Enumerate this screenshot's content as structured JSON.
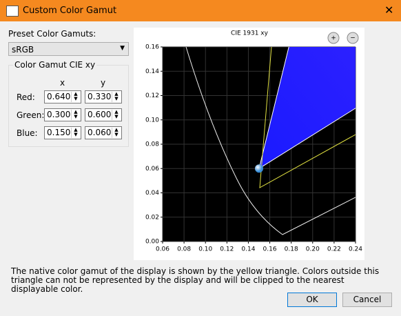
{
  "window": {
    "title": "Custom Color Gamut"
  },
  "preset": {
    "label": "Preset Color Gamuts:",
    "selected": "sRGB"
  },
  "gamut": {
    "title": "Color Gamut CIE xy",
    "columns": [
      "x",
      "y"
    ],
    "rows": [
      {
        "label": "Red:",
        "x": "0.640",
        "y": "0.330"
      },
      {
        "label": "Green:",
        "x": "0.300",
        "y": "0.600"
      },
      {
        "label": "Blue:",
        "x": "0.150",
        "y": "0.060"
      }
    ]
  },
  "chart_data": {
    "type": "chromaticity",
    "title": "CIE 1931 xy",
    "xlim": [
      0.06,
      0.24
    ],
    "ylim": [
      0,
      0.16
    ],
    "xticks": [
      0.06,
      0.08,
      {
        "value": 0.1,
        "label": "0.10"
      },
      0.12,
      0.14,
      0.16,
      0.18,
      {
        "value": 0.2,
        "label": "0.20"
      },
      0.22,
      0.24
    ],
    "yticks": [
      {
        "value": 0,
        "label": "0.00"
      },
      0.02,
      0.04,
      0.06,
      0.08,
      {
        "value": 0.1,
        "label": "0.10"
      },
      0.12,
      0.14,
      0.16
    ],
    "grid": true
  },
  "message": "The native color gamut of the display is shown by the yellow triangle. Colors outside this triangle can not be represented by the display and will be clipped to the nearest displayable color.",
  "buttons": {
    "ok": "OK",
    "cancel": "Cancel"
  }
}
